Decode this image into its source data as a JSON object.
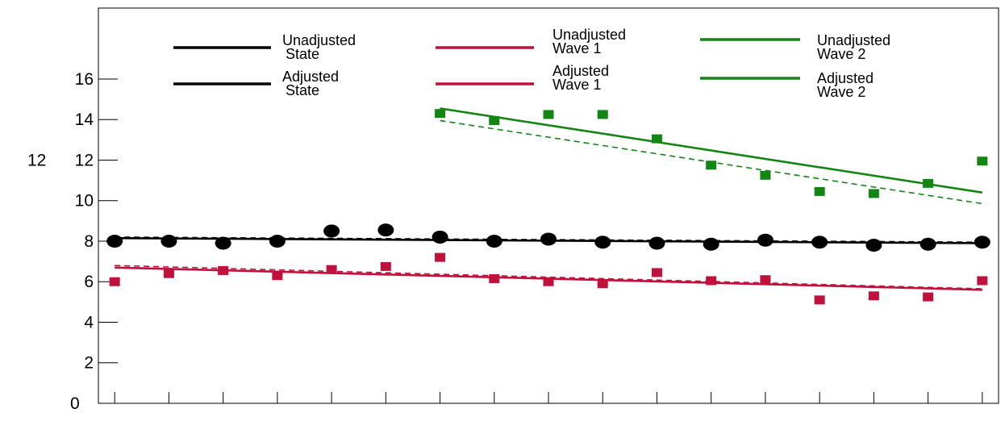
{
  "chart_data": {
    "type": "line",
    "title": "",
    "xlabel": "",
    "ylabel": "",
    "x": [
      1,
      2,
      3,
      4,
      5,
      6,
      7,
      8,
      9,
      10,
      11,
      12,
      13,
      14,
      15,
      16,
      17
    ],
    "ylim": [
      0,
      19.5
    ],
    "xlim": [
      0.7,
      17.3
    ],
    "y_ticks": [
      2,
      4,
      6,
      8,
      10,
      12,
      14,
      16
    ],
    "y_tick_labels": [
      "2",
      "4",
      "6",
      "8",
      "10",
      "12",
      "14",
      "16"
    ],
    "y_outside_labels": [
      {
        "label": "12",
        "value": 12
      },
      {
        "label": "0",
        "value": 0
      }
    ],
    "grid": false,
    "legend_position": "top",
    "legend": [
      {
        "id": "ua_state",
        "lines": [
          "Unadjusted",
          "State"
        ],
        "color": "#000000",
        "style": "solid"
      },
      {
        "id": "a_state",
        "lines": [
          "Adjusted",
          "State"
        ],
        "color": "#000000",
        "style": "solid"
      },
      {
        "id": "ua_w1",
        "lines": [
          "Unadjusted",
          "Wave 1"
        ],
        "color": "#c0103c",
        "style": "solid"
      },
      {
        "id": "a_w1",
        "lines": [
          "Adjusted",
          "Wave 1"
        ],
        "color": "#c0103c",
        "style": "solid"
      },
      {
        "id": "ua_w2",
        "lines": [
          "Unadjusted",
          "Wave 2"
        ],
        "color": "#138513",
        "style": "solid"
      },
      {
        "id": "a_w2",
        "lines": [
          "Adjusted",
          "Wave 2"
        ],
        "color": "#138513",
        "style": "solid"
      }
    ],
    "series": [
      {
        "id": "state_points",
        "color": "#000000",
        "marker": "circle",
        "x": [
          1,
          2,
          3,
          4,
          5,
          6,
          7,
          8,
          9,
          10,
          11,
          12,
          13,
          14,
          15,
          16,
          17
        ],
        "values": [
          8.0,
          8.0,
          7.9,
          8.0,
          8.5,
          8.55,
          8.2,
          8.0,
          8.1,
          7.95,
          7.9,
          7.85,
          8.05,
          7.95,
          7.8,
          7.85,
          7.95
        ]
      },
      {
        "id": "wave1_points",
        "color": "#c0103c",
        "marker": "square",
        "x": [
          1,
          2,
          3,
          4,
          5,
          6,
          7,
          8,
          9,
          10,
          11,
          12,
          13,
          14,
          15,
          16,
          17
        ],
        "values": [
          6.0,
          6.4,
          6.55,
          6.3,
          6.6,
          6.75,
          7.2,
          6.15,
          6.0,
          5.9,
          6.45,
          6.05,
          6.1,
          5.1,
          5.3,
          5.25,
          6.05
        ]
      },
      {
        "id": "wave2_points",
        "color": "#138513",
        "marker": "square",
        "x": [
          7,
          8,
          9,
          10,
          11,
          12,
          13,
          14,
          15,
          16,
          17
        ],
        "values": [
          14.3,
          13.95,
          14.25,
          14.25,
          13.05,
          11.75,
          11.25,
          10.45,
          10.35,
          10.85,
          11.95
        ]
      },
      {
        "id": "state_unadj_fit",
        "color": "#000000",
        "style": "solid",
        "x": [
          1,
          17
        ],
        "values": [
          8.15,
          7.9
        ]
      },
      {
        "id": "state_adj_fit",
        "color": "#000000",
        "style": "dashed",
        "x": [
          1,
          17
        ],
        "values": [
          8.2,
          7.95
        ]
      },
      {
        "id": "wave1_unadj_fit",
        "color": "#c0103c",
        "style": "solid",
        "x": [
          1,
          17
        ],
        "values": [
          6.7,
          5.6
        ]
      },
      {
        "id": "wave1_adj_fit",
        "color": "#c0103c",
        "style": "dashed",
        "x": [
          1,
          17
        ],
        "values": [
          6.8,
          5.65
        ]
      },
      {
        "id": "wave2_unadj_fit",
        "color": "#138513",
        "style": "solid",
        "x": [
          7,
          17
        ],
        "values": [
          14.55,
          10.4
        ]
      },
      {
        "id": "wave2_adj_fit",
        "color": "#138513",
        "style": "dashed",
        "x": [
          7,
          17
        ],
        "values": [
          13.95,
          9.85
        ]
      }
    ]
  }
}
